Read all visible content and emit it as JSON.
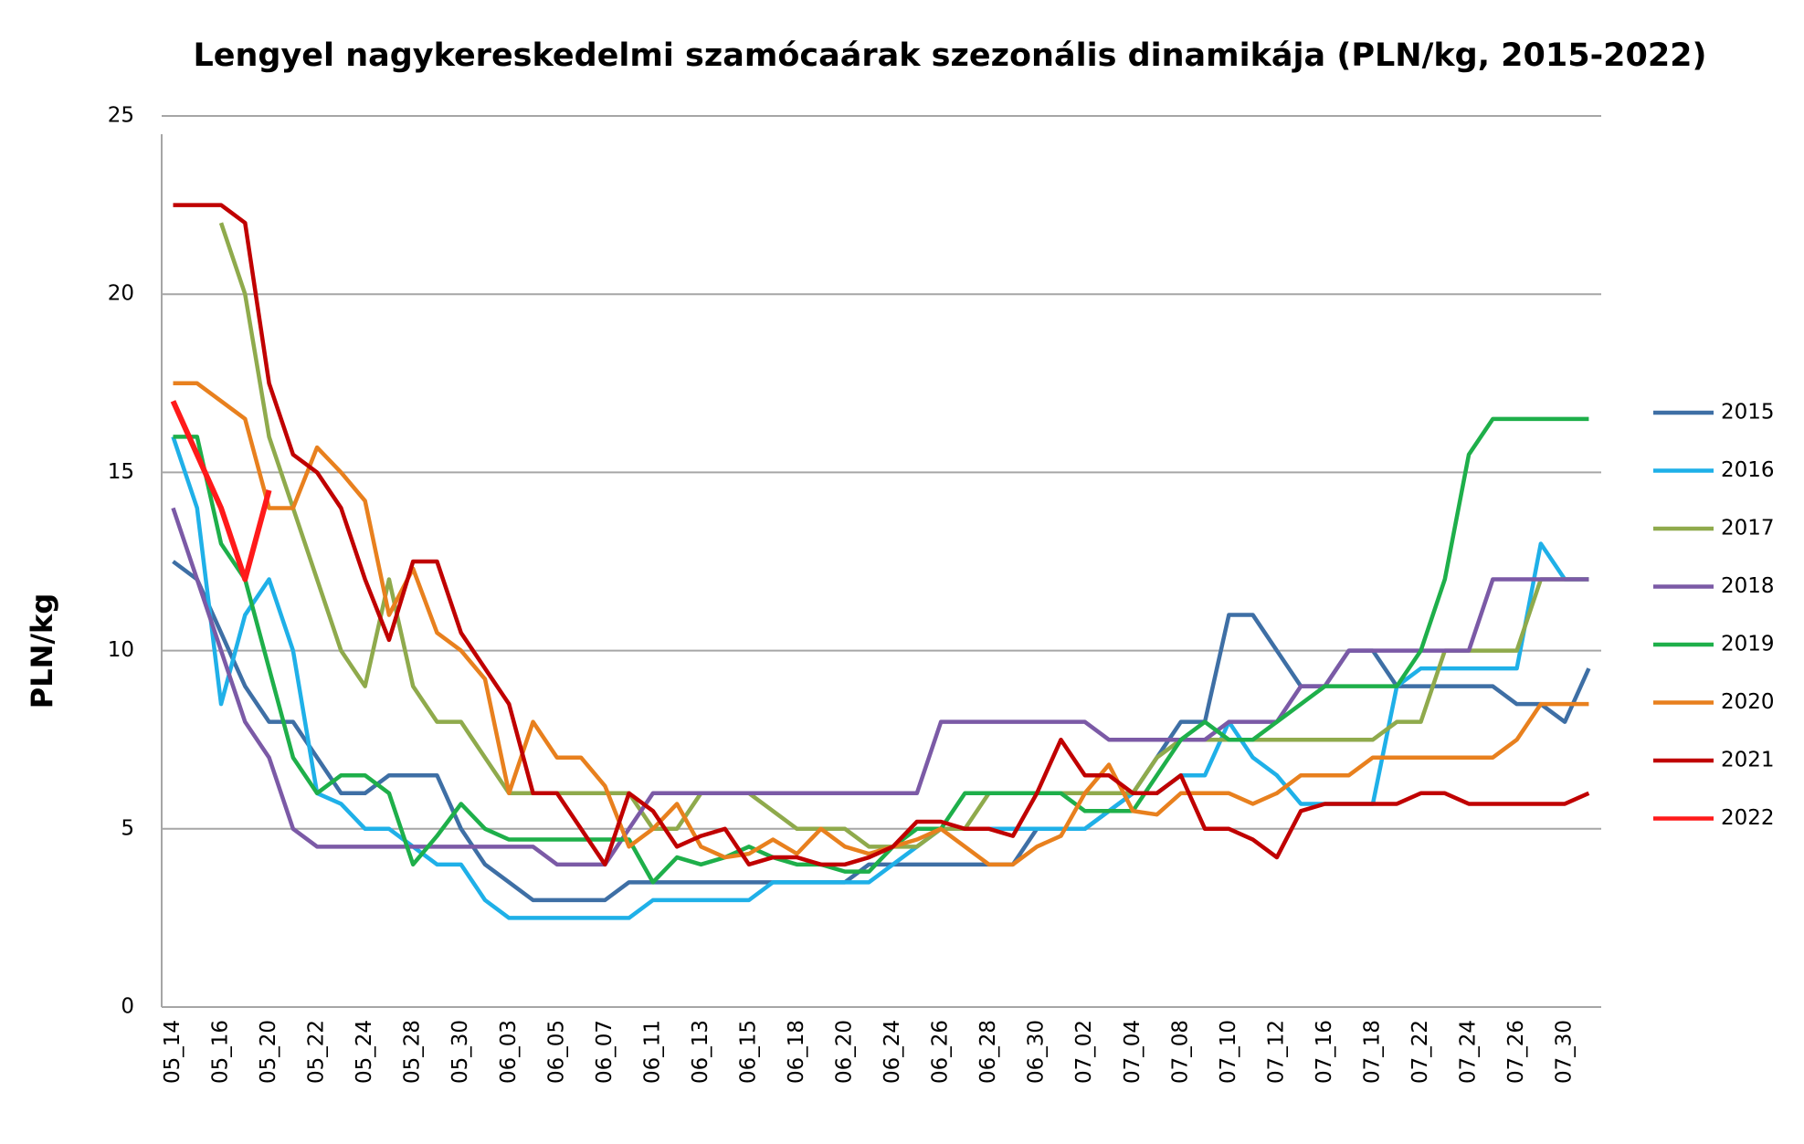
{
  "chart_data": {
    "type": "line",
    "title": "Lengyel nagykereskedelmi szamócaárak szezonális dinamikája (PLN/kg, 2015-2022)",
    "y_label": "PLN/kg",
    "categories": [
      "05_14",
      null,
      "05_16",
      null,
      "05_20",
      null,
      "05_22",
      null,
      "05_24",
      null,
      "05_28",
      null,
      "05_30",
      null,
      "06_03",
      null,
      "06_05",
      null,
      "06_07",
      null,
      "06_11",
      null,
      "06_13",
      null,
      "06_15",
      null,
      "06_18",
      null,
      "06_20",
      null,
      "06_24",
      null,
      "06_26",
      null,
      "06_28",
      null,
      "06_30",
      null,
      "07_02",
      null,
      "07_04",
      null,
      "07_08",
      null,
      "07_10",
      null,
      "07_12",
      null,
      "07_16",
      null,
      "07_18",
      null,
      "07_22",
      null,
      "07_24",
      null,
      "07_26",
      null,
      "07_30",
      null
    ],
    "series": [
      {
        "name": "2015",
        "color": "#3e6fa5",
        "values": [
          12.5,
          12,
          10.5,
          9,
          8,
          8,
          7,
          6,
          6,
          6.5,
          6.5,
          6.5,
          5,
          4,
          3.5,
          3,
          3,
          3,
          3,
          3.5,
          3.5,
          3.5,
          3.5,
          3.5,
          3.5,
          3.5,
          3.5,
          3.5,
          3.5,
          4,
          4,
          4,
          4,
          4,
          4,
          4,
          5,
          5,
          5,
          5.5,
          6,
          7,
          8,
          8,
          11,
          11,
          10,
          9,
          9,
          10,
          10,
          9,
          9,
          9,
          9,
          9,
          8.5,
          8.5,
          8,
          9.5
        ]
      },
      {
        "name": "2016",
        "color": "#1fb0e8",
        "values": [
          16,
          14,
          8.5,
          11,
          12,
          10,
          6,
          5.7,
          5,
          5,
          4.5,
          4,
          4,
          3,
          2.5,
          2.5,
          2.5,
          2.5,
          2.5,
          2.5,
          3,
          3,
          3,
          3,
          3,
          3.5,
          3.5,
          3.5,
          3.5,
          3.5,
          4,
          4.5,
          5,
          5,
          5,
          5,
          5,
          5,
          5,
          5.5,
          6,
          6,
          6.5,
          6.5,
          8,
          7,
          6.5,
          5.7,
          5.7,
          5.7,
          5.7,
          9,
          9.5,
          9.5,
          9.5,
          9.5,
          9.5,
          13,
          12,
          12
        ]
      },
      {
        "name": "2017",
        "color": "#8faa4c",
        "values": [
          null,
          null,
          22,
          20,
          16,
          14,
          12,
          10,
          9,
          12,
          9,
          8,
          8,
          7,
          6,
          6,
          6,
          6,
          6,
          6,
          5,
          5,
          6,
          6,
          6,
          5.5,
          5,
          5,
          5,
          4.5,
          4.5,
          4.5,
          5,
          5,
          6,
          6,
          6,
          6,
          6,
          6,
          6,
          7,
          7.5,
          7.5,
          7.5,
          7.5,
          7.5,
          7.5,
          7.5,
          7.5,
          7.5,
          8,
          8,
          10,
          10,
          10,
          10,
          12,
          12,
          12
        ]
      },
      {
        "name": "2018",
        "color": "#7b5aa6",
        "values": [
          14,
          12,
          10,
          8,
          7,
          5,
          4.5,
          4.5,
          4.5,
          4.5,
          4.5,
          4.5,
          4.5,
          4.5,
          4.5,
          4.5,
          4,
          4,
          4,
          5,
          6,
          6,
          6,
          6,
          6,
          6,
          6,
          6,
          6,
          6,
          6,
          6,
          8,
          8,
          8,
          8,
          8,
          8,
          8,
          7.5,
          7.5,
          7.5,
          7.5,
          7.5,
          8,
          8,
          8,
          9,
          9,
          10,
          10,
          10,
          10,
          10,
          10,
          12,
          12,
          12,
          12,
          12
        ]
      },
      {
        "name": "2019",
        "color": "#1eaf4a",
        "values": [
          16,
          16,
          13,
          12,
          9.5,
          7,
          6,
          6.5,
          6.5,
          6,
          4,
          4.8,
          5.7,
          5,
          4.7,
          4.7,
          4.7,
          4.7,
          4.7,
          4.7,
          3.5,
          4.2,
          4,
          4.2,
          4.5,
          4.2,
          4,
          4,
          3.8,
          3.8,
          4.5,
          5,
          5,
          6,
          6,
          6,
          6,
          6,
          5.5,
          5.5,
          5.5,
          6.5,
          7.5,
          8,
          7.5,
          7.5,
          8,
          8.5,
          9,
          9,
          9,
          9,
          10,
          12,
          15.5,
          16.5,
          16.5,
          16.5,
          16.5,
          16.5
        ]
      },
      {
        "name": "2020",
        "color": "#e8801e",
        "values": [
          17.5,
          17.5,
          17,
          16.5,
          14,
          14,
          15.7,
          15,
          14.2,
          11,
          12.3,
          10.5,
          10,
          9.2,
          6,
          8,
          7,
          7,
          6.2,
          4.5,
          5,
          5.7,
          4.5,
          4.2,
          4.3,
          4.7,
          4.3,
          5,
          4.5,
          4.3,
          4.5,
          4.7,
          5,
          4.5,
          4,
          4,
          4.5,
          4.8,
          6,
          6.8,
          5.5,
          5.4,
          6,
          6,
          6,
          5.7,
          6,
          6.5,
          6.5,
          6.5,
          7,
          7,
          7,
          7,
          7,
          7,
          7.5,
          8.5,
          8.5,
          8.5
        ]
      },
      {
        "name": "2021",
        "color": "#c00000",
        "values": [
          22.5,
          22.5,
          22.5,
          22,
          17.5,
          15.5,
          15,
          14,
          12,
          10.3,
          12.5,
          12.5,
          10.5,
          9.5,
          8.5,
          6,
          6,
          5,
          4,
          6,
          5.5,
          4.5,
          4.8,
          5,
          4,
          4.2,
          4.2,
          4,
          4,
          4.2,
          4.5,
          5.2,
          5.2,
          5,
          5,
          4.8,
          6,
          7.5,
          6.5,
          6.5,
          6,
          6,
          6.5,
          5,
          5,
          4.7,
          4.2,
          5.5,
          5.7,
          5.7,
          5.7,
          5.7,
          6,
          6,
          5.7,
          5.7,
          5.7,
          5.7,
          5.7,
          6
        ]
      },
      {
        "name": "2022",
        "color": "#ff1a1a",
        "values": [
          17,
          15.5,
          14,
          12,
          14.5,
          null,
          null,
          null,
          null,
          null,
          null,
          null,
          null,
          null,
          null,
          null,
          null,
          null,
          null,
          null,
          null,
          null,
          null,
          null,
          null,
          null,
          null,
          null,
          null,
          null,
          null,
          null,
          null,
          null,
          null,
          null,
          null,
          null,
          null,
          null,
          null,
          null,
          null,
          null,
          null,
          null,
          null,
          null,
          null,
          null,
          null,
          null,
          null,
          null,
          null,
          null,
          null,
          null,
          null,
          null
        ]
      }
    ],
    "ylim": [
      0,
      25
    ],
    "yticks": [
      0,
      5,
      10,
      15,
      20,
      25
    ],
    "grid": true,
    "legend": "right"
  }
}
